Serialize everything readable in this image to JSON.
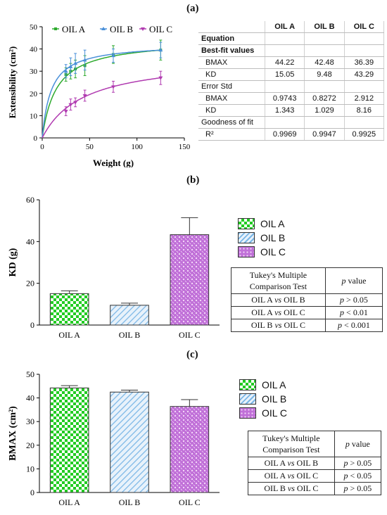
{
  "panel_labels": {
    "a": "(a)",
    "b": "(b)",
    "c": "(c)"
  },
  "colors": {
    "oil_a": "#2eaa2e",
    "oil_b": "#4a90d9",
    "oil_c": "#b03ab0",
    "fill_a": "#22cc22",
    "fill_b": "#7ab6e6",
    "fill_c": "#c070d8"
  },
  "chart_data": [
    {
      "id": "a",
      "type": "scatter",
      "xlabel": "Weight (g)",
      "ylabel": "Extensibility (cm²)",
      "xlim": [
        0,
        150
      ],
      "ylim": [
        0,
        50
      ],
      "xticks": [
        0,
        50,
        100,
        150
      ],
      "yticks": [
        0,
        10,
        20,
        30,
        40,
        50
      ],
      "legend": "top-left",
      "series": [
        {
          "name": "OIL A",
          "x": [
            25,
            30,
            35,
            45,
            75,
            125
          ],
          "y": [
            28.5,
            30.0,
            31.0,
            32.5,
            37.5,
            39.5
          ],
          "err": [
            3.0,
            3.5,
            4.0,
            4.5,
            4.0,
            4.5
          ],
          "fit": {
            "BMAX": 44.22,
            "KD": 15.05
          }
        },
        {
          "name": "OIL B",
          "x": [
            25,
            30,
            35,
            45,
            75,
            125
          ],
          "y": [
            30.0,
            32.0,
            33.5,
            35.0,
            37.0,
            39.5
          ],
          "err": [
            3.0,
            4.0,
            4.5,
            4.5,
            3.0,
            3.5
          ],
          "fit": {
            "BMAX": 42.48,
            "KD": 9.48
          }
        },
        {
          "name": "OIL C",
          "x": [
            25,
            30,
            35,
            45,
            75,
            125
          ],
          "y": [
            12.0,
            15.0,
            16.0,
            19.0,
            23.0,
            27.0
          ],
          "err": [
            2.0,
            2.5,
            2.0,
            2.5,
            2.5,
            3.0
          ],
          "fit": {
            "BMAX": 36.39,
            "KD": 43.29
          }
        }
      ]
    },
    {
      "id": "b",
      "type": "bar",
      "ylabel": "KD (g)",
      "categories": [
        "OIL A",
        "OIL B",
        "OIL C"
      ],
      "values": [
        15.05,
        9.48,
        43.29
      ],
      "errors": [
        1.343,
        1.029,
        8.16
      ],
      "ylim": [
        0,
        60
      ],
      "yticks": [
        0,
        20,
        40,
        60
      ],
      "legend": "right"
    },
    {
      "id": "c",
      "type": "bar",
      "ylabel": "BMAX (cm²)",
      "categories": [
        "OIL A",
        "OIL B",
        "OIL C"
      ],
      "values": [
        44.22,
        42.48,
        36.39
      ],
      "errors": [
        0.9743,
        0.8272,
        2.912
      ],
      "ylim": [
        0,
        50
      ],
      "yticks": [
        0,
        10,
        20,
        30,
        40,
        50
      ],
      "legend": "right"
    }
  ],
  "fit_table": {
    "headers": [
      "",
      "OIL A",
      "OIL B",
      "OIL C"
    ],
    "rows": [
      {
        "label": "Equation",
        "bold": true,
        "vals": [
          "",
          "",
          ""
        ],
        "indent": false
      },
      {
        "label": "Best-fit values",
        "bold": true,
        "vals": [
          "",
          "",
          ""
        ],
        "indent": false
      },
      {
        "label": "BMAX",
        "bold": false,
        "vals": [
          "44.22",
          "42.48",
          "36.39"
        ],
        "indent": true
      },
      {
        "label": "KD",
        "bold": false,
        "vals": [
          "15.05",
          "9.48",
          "43.29"
        ],
        "indent": true
      },
      {
        "label": "Error Std",
        "bold": false,
        "vals": [
          "",
          "",
          ""
        ],
        "indent": false
      },
      {
        "label": "BMAX",
        "bold": false,
        "vals": [
          "0.9743",
          "0.8272",
          "2.912"
        ],
        "indent": true
      },
      {
        "label": "KD",
        "bold": false,
        "vals": [
          "1.343",
          "1.029",
          "8.16"
        ],
        "indent": true
      },
      {
        "label": "Goodness of fit",
        "bold": false,
        "vals": [
          "",
          "",
          ""
        ],
        "indent": false
      },
      {
        "label": "R²",
        "bold": false,
        "vals": [
          "0.9969",
          "0.9947",
          "0.9925"
        ],
        "indent": true
      }
    ]
  },
  "tukey_b": {
    "head_line1": "Tukey's Multiple",
    "head_line2": "Comparison Test",
    "p_label": "p",
    "value_label": "value",
    "rows": [
      {
        "a": "OIL A",
        "vs": "vs",
        "b": "OIL B",
        "p": "p",
        "cmp": "> 0.05"
      },
      {
        "a": "OIL A",
        "vs": "vs",
        "b": "OIL C",
        "p": "p",
        "cmp": "< 0.01"
      },
      {
        "a": "OIL B",
        "vs": "vs",
        "b": "OIL C",
        "p": "p",
        "cmp": "< 0.001"
      }
    ]
  },
  "tukey_c": {
    "head_line1": "Tukey's Multiple",
    "head_line2": "Comparison Test",
    "p_label": "p",
    "value_label": "value",
    "rows": [
      {
        "a": "OIL A",
        "vs": "vs",
        "b": "OIL B",
        "p": "p",
        "cmp": "> 0.05"
      },
      {
        "a": "OIL A",
        "vs": "vs",
        "b": "OIL C",
        "p": "p",
        "cmp": "< 0.05"
      },
      {
        "a": "OIL B",
        "vs": "vs",
        "b": "OIL C",
        "p": "p",
        "cmp": "> 0.05"
      }
    ]
  }
}
